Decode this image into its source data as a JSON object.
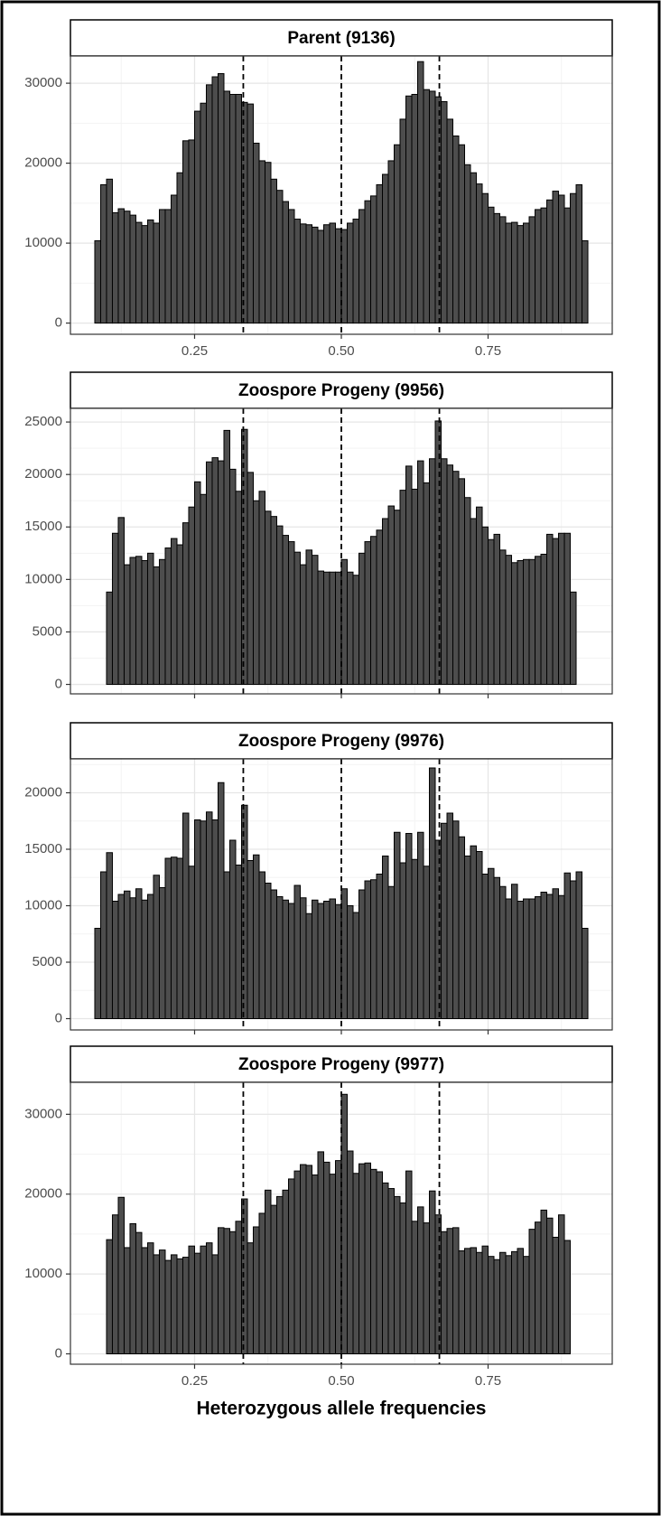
{
  "chart_data": [
    {
      "type": "histogram",
      "title": "Parent (9136)",
      "bins": [
        0.08,
        0.09,
        0.1,
        0.11,
        0.12,
        0.13,
        0.14,
        0.15,
        0.16,
        0.17,
        0.18,
        0.19,
        0.2,
        0.21,
        0.22,
        0.23,
        0.24,
        0.25,
        0.26,
        0.27,
        0.28,
        0.29,
        0.3,
        0.31,
        0.32,
        0.33,
        0.34,
        0.35,
        0.36,
        0.37,
        0.38,
        0.39,
        0.4,
        0.41,
        0.42,
        0.43,
        0.44,
        0.45,
        0.46,
        0.47,
        0.48,
        0.49,
        0.5,
        0.51,
        0.52,
        0.53,
        0.54,
        0.55,
        0.56,
        0.57,
        0.58,
        0.59,
        0.6,
        0.61,
        0.62,
        0.63,
        0.64,
        0.65,
        0.66,
        0.67,
        0.68,
        0.69,
        0.7,
        0.71,
        0.72,
        0.73,
        0.74,
        0.75,
        0.76,
        0.77,
        0.78,
        0.79,
        0.8,
        0.81,
        0.82,
        0.83,
        0.84,
        0.85,
        0.86,
        0.87,
        0.88,
        0.89,
        0.9,
        0.91,
        0.92
      ],
      "values": [
        10300,
        17300,
        18000,
        13800,
        14300,
        14000,
        13500,
        12600,
        12200,
        12900,
        12500,
        14200,
        14200,
        16000,
        18800,
        22800,
        22900,
        26500,
        27500,
        29800,
        30800,
        31200,
        29000,
        28600,
        28600,
        27600,
        27400,
        22500,
        20300,
        20100,
        18000,
        16600,
        15200,
        14200,
        13000,
        12400,
        12300,
        12000,
        11600,
        12300,
        12500,
        11800,
        11700,
        12500,
        13000,
        14200,
        15300,
        15900,
        17300,
        18600,
        20300,
        22300,
        25500,
        28400,
        28600,
        32700,
        29200,
        29000,
        28300,
        27700,
        25500,
        23400,
        22300,
        19800,
        18800,
        17400,
        16200,
        14500,
        13700,
        13300,
        12500,
        12600,
        12200,
        12500,
        13300,
        14200,
        14400,
        15400,
        16500,
        16000,
        14400,
        16200,
        17300,
        10300
      ],
      "reference_lines": [
        0.333,
        0.5,
        0.667
      ],
      "xlim": [
        0.0385,
        0.9615
      ],
      "xticks": [
        {
          "value": 0.25,
          "label": "0.25"
        },
        {
          "value": 0.5,
          "label": "0.50"
        },
        {
          "value": 0.75,
          "label": "0.75"
        }
      ],
      "ylim": [
        -1400,
        33400
      ],
      "yticks": [
        0,
        10000,
        20000,
        30000
      ],
      "grid": true,
      "color": "#4d4d4d"
    },
    {
      "type": "histogram",
      "title": "Zoospore Progeny (9956)",
      "bins": [
        0.08,
        0.09,
        0.1,
        0.11,
        0.12,
        0.13,
        0.14,
        0.15,
        0.16,
        0.17,
        0.18,
        0.19,
        0.2,
        0.21,
        0.22,
        0.23,
        0.24,
        0.25,
        0.26,
        0.27,
        0.28,
        0.29,
        0.3,
        0.31,
        0.32,
        0.33,
        0.34,
        0.35,
        0.36,
        0.37,
        0.38,
        0.39,
        0.4,
        0.41,
        0.42,
        0.43,
        0.44,
        0.45,
        0.46,
        0.47,
        0.48,
        0.49,
        0.5,
        0.51,
        0.52,
        0.53,
        0.54,
        0.55,
        0.56,
        0.57,
        0.58,
        0.59,
        0.6,
        0.61,
        0.62,
        0.63,
        0.64,
        0.65,
        0.66,
        0.67,
        0.68,
        0.69,
        0.7,
        0.71,
        0.72,
        0.73,
        0.74,
        0.75,
        0.76,
        0.77,
        0.78,
        0.79,
        0.8,
        0.81,
        0.82,
        0.83,
        0.84,
        0.85,
        0.86,
        0.87,
        0.88,
        0.89,
        0.9,
        0.91,
        0.92
      ],
      "values": [
        0,
        0,
        8800,
        14400,
        15900,
        11400,
        12100,
        12200,
        11800,
        12500,
        11200,
        11900,
        13000,
        13900,
        13300,
        15400,
        16900,
        19300,
        18100,
        21200,
        21600,
        21300,
        24200,
        20500,
        18400,
        24300,
        20200,
        17500,
        18400,
        16500,
        16000,
        15100,
        14200,
        13600,
        12600,
        11400,
        12800,
        12300,
        10800,
        10700,
        10700,
        10700,
        11900,
        10700,
        10400,
        12500,
        13600,
        14100,
        14700,
        15800,
        17000,
        16600,
        18500,
        20800,
        18600,
        21300,
        19200,
        21500,
        25100,
        21500,
        20900,
        20300,
        19600,
        17800,
        15800,
        16900,
        15000,
        13800,
        14300,
        12800,
        12300,
        11600,
        11800,
        11900,
        11900,
        12200,
        12400,
        14300,
        13900,
        14400,
        14400,
        8800,
        0,
        0
      ],
      "reference_lines": [
        0.333,
        0.5,
        0.667
      ],
      "xlim": [
        0.0385,
        0.9615
      ],
      "xticks": [
        0.25,
        0.5,
        0.75
      ],
      "ylim": [
        -900,
        26300
      ],
      "yticks": [
        0,
        5000,
        10000,
        15000,
        20000,
        25000
      ],
      "grid": true,
      "color": "#4d4d4d"
    },
    {
      "type": "histogram",
      "title": "Zoospore Progeny (9976)",
      "bins": [
        0.08,
        0.09,
        0.1,
        0.11,
        0.12,
        0.13,
        0.14,
        0.15,
        0.16,
        0.17,
        0.18,
        0.19,
        0.2,
        0.21,
        0.22,
        0.23,
        0.24,
        0.25,
        0.26,
        0.27,
        0.28,
        0.29,
        0.3,
        0.31,
        0.32,
        0.33,
        0.34,
        0.35,
        0.36,
        0.37,
        0.38,
        0.39,
        0.4,
        0.41,
        0.42,
        0.43,
        0.44,
        0.45,
        0.46,
        0.47,
        0.48,
        0.49,
        0.5,
        0.51,
        0.52,
        0.53,
        0.54,
        0.55,
        0.56,
        0.57,
        0.58,
        0.59,
        0.6,
        0.61,
        0.62,
        0.63,
        0.64,
        0.65,
        0.66,
        0.67,
        0.68,
        0.69,
        0.7,
        0.71,
        0.72,
        0.73,
        0.74,
        0.75,
        0.76,
        0.77,
        0.78,
        0.79,
        0.8,
        0.81,
        0.82,
        0.83,
        0.84,
        0.85,
        0.86,
        0.87,
        0.88,
        0.89,
        0.9,
        0.91,
        0.92
      ],
      "values": [
        8000,
        13000,
        14700,
        10400,
        11000,
        11300,
        10700,
        11500,
        10500,
        11000,
        12700,
        11600,
        14200,
        14300,
        14200,
        18200,
        13500,
        17600,
        17500,
        18300,
        17600,
        20900,
        13000,
        15800,
        13600,
        18900,
        14000,
        14500,
        13000,
        12000,
        11400,
        10800,
        10500,
        10200,
        11800,
        10700,
        9300,
        10500,
        10200,
        10400,
        10600,
        10100,
        11500,
        10000,
        9400,
        11400,
        12200,
        12300,
        12800,
        14400,
        11700,
        16500,
        13800,
        16400,
        14100,
        16500,
        13500,
        22200,
        15800,
        17300,
        18200,
        17500,
        16100,
        14400,
        15300,
        14800,
        12800,
        13300,
        12500,
        11700,
        10600,
        11900,
        10400,
        10600,
        10600,
        10800,
        11200,
        11000,
        11500,
        10900,
        12900,
        12200,
        13000,
        8000
      ],
      "reference_lines": [
        0.333,
        0.5,
        0.667
      ],
      "xlim": [
        0.0385,
        0.9615
      ],
      "xticks": [
        0.25,
        0.5,
        0.75
      ],
      "ylim": [
        -1000,
        23000
      ],
      "yticks": [
        0,
        5000,
        10000,
        15000,
        20000
      ],
      "grid": true,
      "color": "#4d4d4d"
    },
    {
      "type": "histogram",
      "title": "Zoospore Progeny (9977)",
      "bins": [
        0.08,
        0.09,
        0.1,
        0.11,
        0.12,
        0.13,
        0.14,
        0.15,
        0.16,
        0.17,
        0.18,
        0.19,
        0.2,
        0.21,
        0.22,
        0.23,
        0.24,
        0.25,
        0.26,
        0.27,
        0.28,
        0.29,
        0.3,
        0.31,
        0.32,
        0.33,
        0.34,
        0.35,
        0.36,
        0.37,
        0.38,
        0.39,
        0.4,
        0.41,
        0.42,
        0.43,
        0.44,
        0.45,
        0.46,
        0.47,
        0.48,
        0.49,
        0.5,
        0.51,
        0.52,
        0.53,
        0.54,
        0.55,
        0.56,
        0.57,
        0.58,
        0.59,
        0.6,
        0.61,
        0.62,
        0.63,
        0.64,
        0.65,
        0.66,
        0.67,
        0.68,
        0.69,
        0.7,
        0.71,
        0.72,
        0.73,
        0.74,
        0.75,
        0.76,
        0.77,
        0.78,
        0.79,
        0.8,
        0.81,
        0.82,
        0.83,
        0.84,
        0.85,
        0.86,
        0.87,
        0.88,
        0.89,
        0.9,
        0.91,
        0.92
      ],
      "values": [
        0,
        0,
        14300,
        17400,
        19600,
        13300,
        16300,
        15200,
        13300,
        13900,
        12400,
        13000,
        11700,
        12400,
        11900,
        12100,
        13500,
        12600,
        13500,
        13900,
        12400,
        15800,
        15700,
        15300,
        16600,
        19400,
        13900,
        15900,
        17600,
        20500,
        18600,
        19700,
        20500,
        21900,
        22900,
        23700,
        23600,
        22400,
        25300,
        24000,
        22500,
        24200,
        32500,
        25400,
        22600,
        23800,
        23900,
        23100,
        22800,
        21400,
        20700,
        19700,
        18900,
        22900,
        16600,
        18400,
        16400,
        20400,
        17400,
        15300,
        15700,
        15800,
        12900,
        13200,
        13300,
        12700,
        13500,
        12200,
        11800,
        12700,
        12300,
        12800,
        13200,
        12200,
        15600,
        16500,
        18000,
        17000,
        14600,
        17400,
        14200,
        0,
        0,
        0
      ],
      "reference_lines": [
        0.333,
        0.5,
        0.667
      ],
      "xlim": [
        0.0385,
        0.9615
      ],
      "xticks": [
        {
          "value": 0.25,
          "label": "0.25"
        },
        {
          "value": 0.5,
          "label": "0.50"
        },
        {
          "value": 0.75,
          "label": "0.75"
        }
      ],
      "ylim": [
        -1300,
        34000
      ],
      "yticks": [
        0,
        10000,
        20000,
        30000
      ],
      "grid": true,
      "color": "#4d4d4d",
      "xlabel": "Heterozygous allele frequencies"
    }
  ]
}
